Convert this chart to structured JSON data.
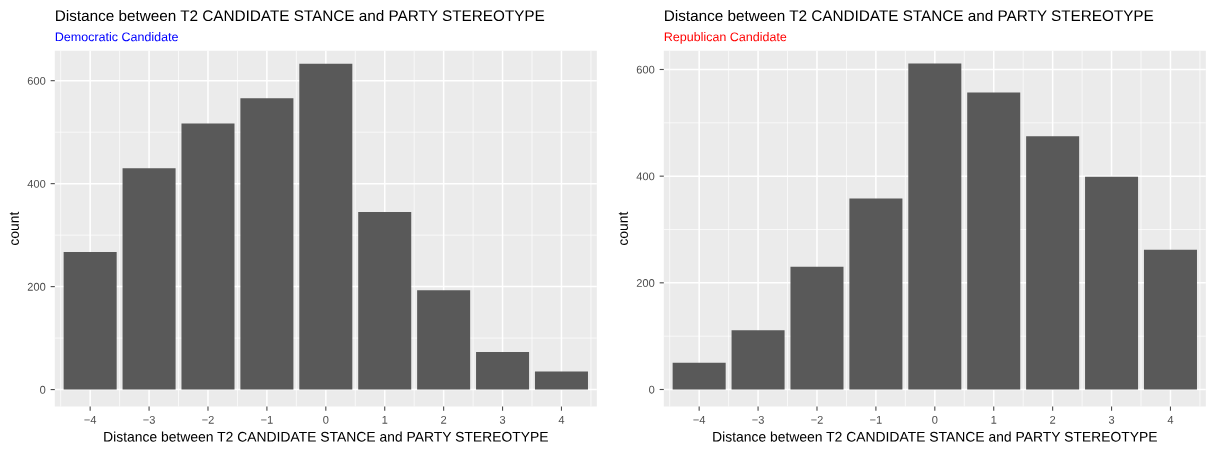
{
  "chart_data": [
    {
      "type": "bar",
      "title": "Distance between T2 CANDIDATE STANCE and PARTY STEREOTYPE",
      "subtitle": "Democratic Candidate",
      "xlabel": "Distance between T2 CANDIDATE STANCE and PARTY STEREOTYPE",
      "ylabel": "count",
      "categories": [
        "−4",
        "−3",
        "−2",
        "−1",
        "0",
        "1",
        "2",
        "3",
        "4"
      ],
      "values": [
        267,
        430,
        517,
        566,
        633,
        345,
        193,
        73,
        35
      ],
      "color": "#595959",
      "ylim": [
        -33,
        658
      ],
      "yticks": [
        0,
        200,
        400,
        600
      ],
      "grid": true
    },
    {
      "type": "bar",
      "title": "Distance between T2 CANDIDATE STANCE and PARTY STEREOTYPE",
      "subtitle": "Republican Candidate",
      "xlabel": "Distance between T2 CANDIDATE STANCE and PARTY STEREOTYPE",
      "ylabel": "count",
      "categories": [
        "−4",
        "−3",
        "−2",
        "−1",
        "0",
        "1",
        "2",
        "3",
        "4"
      ],
      "values": [
        50,
        111,
        230,
        358,
        611,
        557,
        475,
        399,
        262
      ],
      "color": "#595959",
      "ylim": [
        -32,
        635
      ],
      "yticks": [
        0,
        200,
        400,
        600
      ],
      "grid": true
    }
  ]
}
